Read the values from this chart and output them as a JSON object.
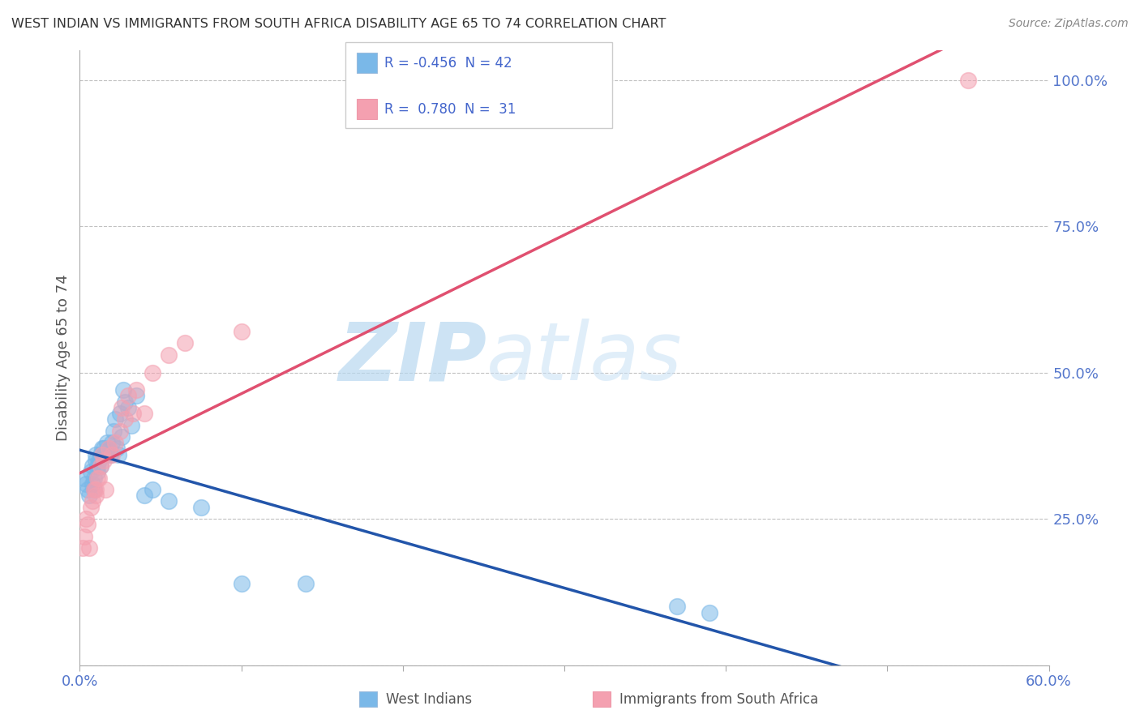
{
  "title": "WEST INDIAN VS IMMIGRANTS FROM SOUTH AFRICA DISABILITY AGE 65 TO 74 CORRELATION CHART",
  "source": "Source: ZipAtlas.com",
  "ylabel": "Disability Age 65 to 74",
  "west_indian_R": -0.456,
  "west_indian_N": 42,
  "south_africa_R": 0.78,
  "south_africa_N": 31,
  "west_indian_color": "#7ab8e8",
  "south_africa_color": "#f4a0b0",
  "regression_blue": "#2255aa",
  "regression_pink": "#e05070",
  "xlim": [
    0.0,
    0.6
  ],
  "ylim": [
    0.0,
    1.05
  ],
  "xticks": [
    0.0,
    0.1,
    0.2,
    0.3,
    0.4,
    0.5,
    0.6
  ],
  "yticks": [
    0.0,
    0.25,
    0.5,
    0.75,
    1.0
  ],
  "west_indians_x": [
    0.003,
    0.004,
    0.005,
    0.006,
    0.007,
    0.008,
    0.008,
    0.009,
    0.009,
    0.01,
    0.01,
    0.011,
    0.011,
    0.012,
    0.013,
    0.013,
    0.014,
    0.015,
    0.016,
    0.017,
    0.018,
    0.019,
    0.02,
    0.021,
    0.022,
    0.023,
    0.024,
    0.025,
    0.026,
    0.027,
    0.028,
    0.03,
    0.032,
    0.035,
    0.04,
    0.045,
    0.055,
    0.075,
    0.1,
    0.14,
    0.37,
    0.39
  ],
  "west_indians_y": [
    0.32,
    0.31,
    0.3,
    0.29,
    0.33,
    0.34,
    0.31,
    0.3,
    0.32,
    0.35,
    0.36,
    0.34,
    0.33,
    0.35,
    0.34,
    0.36,
    0.37,
    0.37,
    0.36,
    0.38,
    0.37,
    0.36,
    0.38,
    0.4,
    0.42,
    0.37,
    0.36,
    0.43,
    0.39,
    0.47,
    0.45,
    0.44,
    0.41,
    0.46,
    0.29,
    0.3,
    0.28,
    0.27,
    0.14,
    0.14,
    0.1,
    0.09
  ],
  "south_africa_x": [
    0.002,
    0.003,
    0.004,
    0.005,
    0.006,
    0.007,
    0.008,
    0.009,
    0.01,
    0.01,
    0.011,
    0.012,
    0.013,
    0.014,
    0.015,
    0.016,
    0.018,
    0.02,
    0.022,
    0.025,
    0.026,
    0.028,
    0.03,
    0.033,
    0.035,
    0.04,
    0.045,
    0.055,
    0.065,
    0.1,
    0.55
  ],
  "south_africa_y": [
    0.2,
    0.22,
    0.25,
    0.24,
    0.2,
    0.27,
    0.28,
    0.3,
    0.3,
    0.29,
    0.32,
    0.32,
    0.34,
    0.36,
    0.35,
    0.3,
    0.37,
    0.36,
    0.38,
    0.4,
    0.44,
    0.42,
    0.46,
    0.43,
    0.47,
    0.43,
    0.5,
    0.53,
    0.55,
    0.57,
    1.0
  ],
  "watermark_zip": "ZIP",
  "watermark_atlas": "atlas",
  "background_color": "#ffffff",
  "grid_color": "#bbbbbb",
  "title_color": "#333333",
  "axis_label_color": "#555555",
  "tick_label_color": "#5577cc",
  "legend_text_color": "#4466cc"
}
